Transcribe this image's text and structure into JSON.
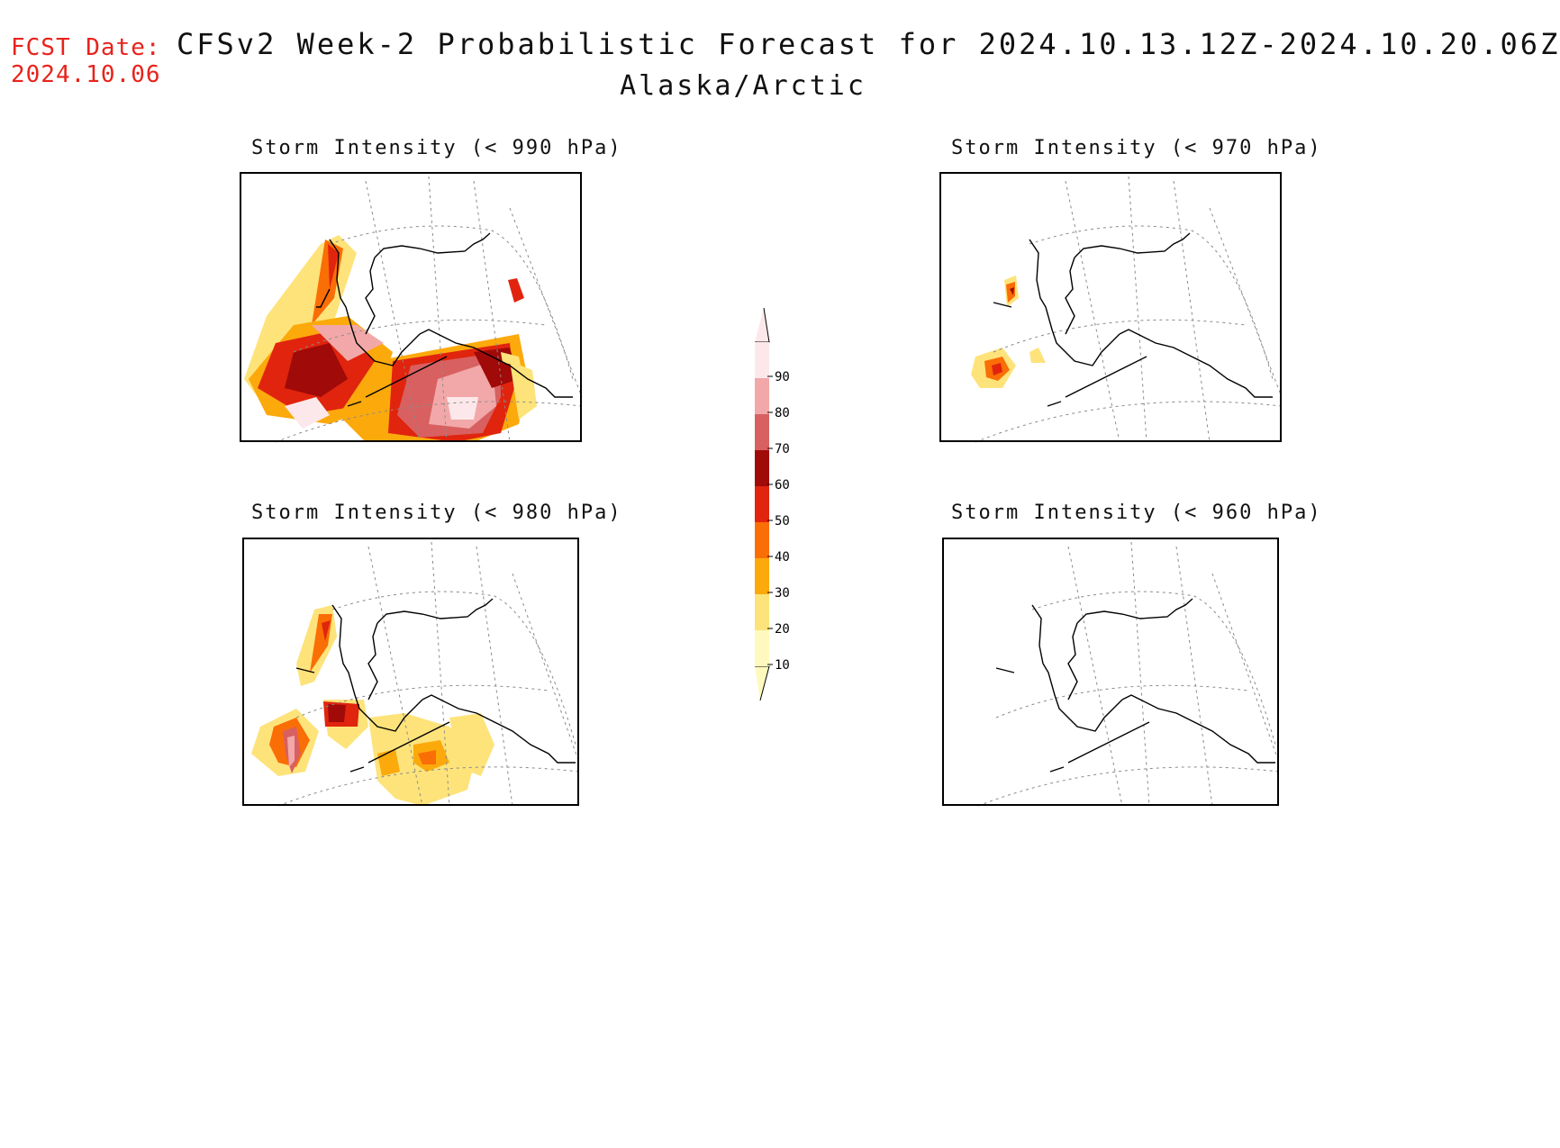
{
  "header": {
    "fcst_label": "FCST Date:",
    "fcst_date": "2024.10.06",
    "title": "CFSv2 Week-2 Probabilistic Forecast for 2024.10.13.12Z-2024.10.20.06Z",
    "region": "Alaska/Arctic"
  },
  "panels": [
    {
      "title": "Storm Intensity (< 990 hPa)"
    },
    {
      "title": "Storm Intensity (< 970 hPa)"
    },
    {
      "title": "Storm Intensity (< 980 hPa)"
    },
    {
      "title": "Storm Intensity (< 960 hPa)"
    }
  ],
  "colorbar": {
    "levels": [
      "10",
      "20",
      "30",
      "40",
      "50",
      "60",
      "70",
      "80",
      "90"
    ],
    "colors": [
      "#fff9be",
      "#fde37a",
      "#fca90c",
      "#fa6e06",
      "#e0240e",
      "#a00a08",
      "#d86060",
      "#f2a8a8",
      "#fce8ea"
    ]
  }
}
